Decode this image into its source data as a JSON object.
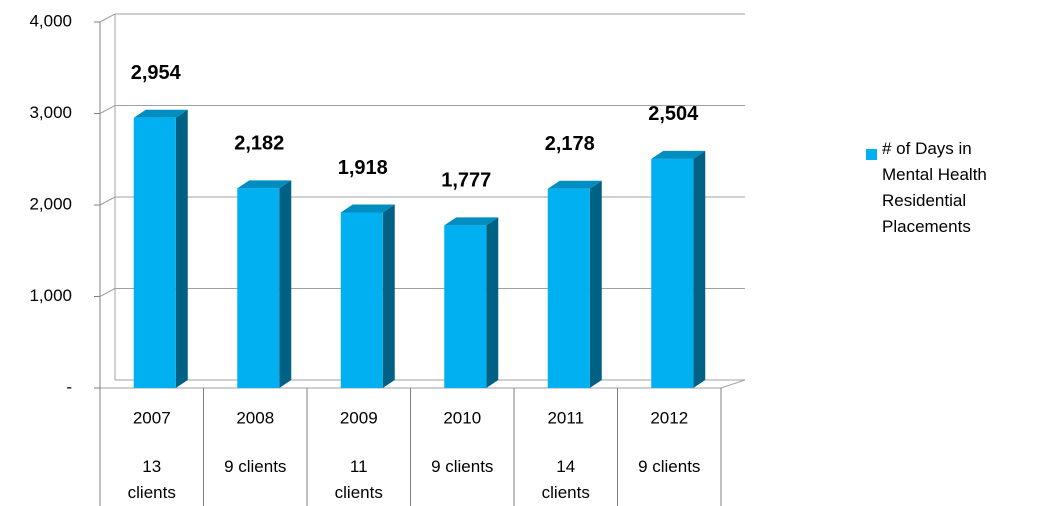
{
  "chart_data": {
    "type": "bar",
    "categories": [
      "2007",
      "2008",
      "2009",
      "2010",
      "2011",
      "2012"
    ],
    "subcategories": [
      "13 clients",
      "9 clients",
      "11 clients",
      "9 clients",
      "14 clients",
      "9 clients"
    ],
    "series": [
      {
        "name": "# of Days in Mental Health Residential Placements",
        "color": "#00b0f0",
        "values": [
          2954,
          2182,
          1918,
          1777,
          2178,
          2504
        ],
        "value_labels": [
          "2,954",
          "2,182",
          "1,918",
          "1,777",
          "2,178",
          "2,504"
        ]
      }
    ],
    "ylim": [
      0,
      4000
    ],
    "yticks": [
      {
        "value": 0,
        "label": "-"
      },
      {
        "value": 1000,
        "label": "1,000"
      },
      {
        "value": 2000,
        "label": "2,000"
      },
      {
        "value": 3000,
        "label": "3,000"
      },
      {
        "value": 4000,
        "label": "4,000"
      }
    ],
    "grid": true,
    "legend": "right"
  }
}
